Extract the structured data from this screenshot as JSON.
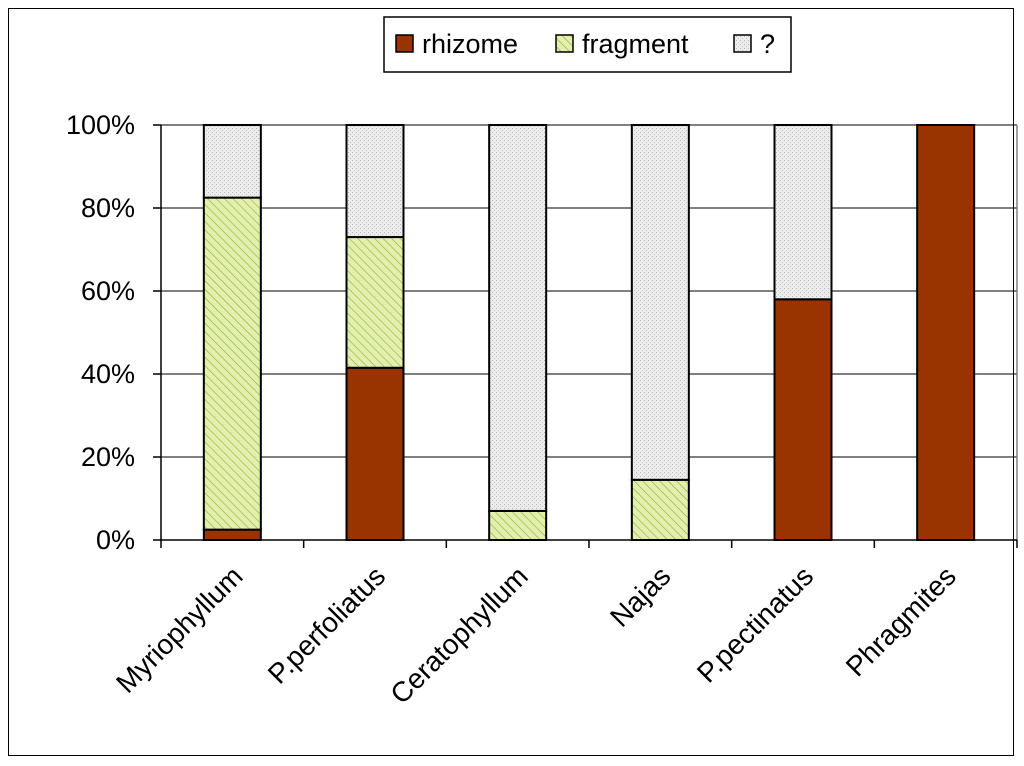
{
  "chart_data": {
    "type": "bar",
    "stacked": true,
    "normalized": true,
    "categories": [
      "Myriophyllum",
      "P.perfoliatus",
      "Ceratophyllum",
      "Najas",
      "P.pectinatus",
      "Phragmites"
    ],
    "series": [
      {
        "name": "rhizome",
        "color": "#993300",
        "pattern": "solid",
        "values": [
          2.5,
          41.5,
          0,
          0,
          58,
          100
        ]
      },
      {
        "name": "fragment",
        "color": "#e2efae",
        "pattern": "hatched",
        "values": [
          80,
          31.5,
          7,
          14.5,
          0,
          0
        ]
      },
      {
        "name": "?",
        "color": "#e6e6e6",
        "pattern": "dotted",
        "values": [
          17.5,
          27,
          93,
          85.5,
          42,
          0
        ]
      }
    ],
    "yticks": [
      "0%",
      "20%",
      "40%",
      "60%",
      "80%",
      "100%"
    ],
    "ylim": [
      0,
      100
    ],
    "grid": "horizontal",
    "legend_position": "top"
  }
}
